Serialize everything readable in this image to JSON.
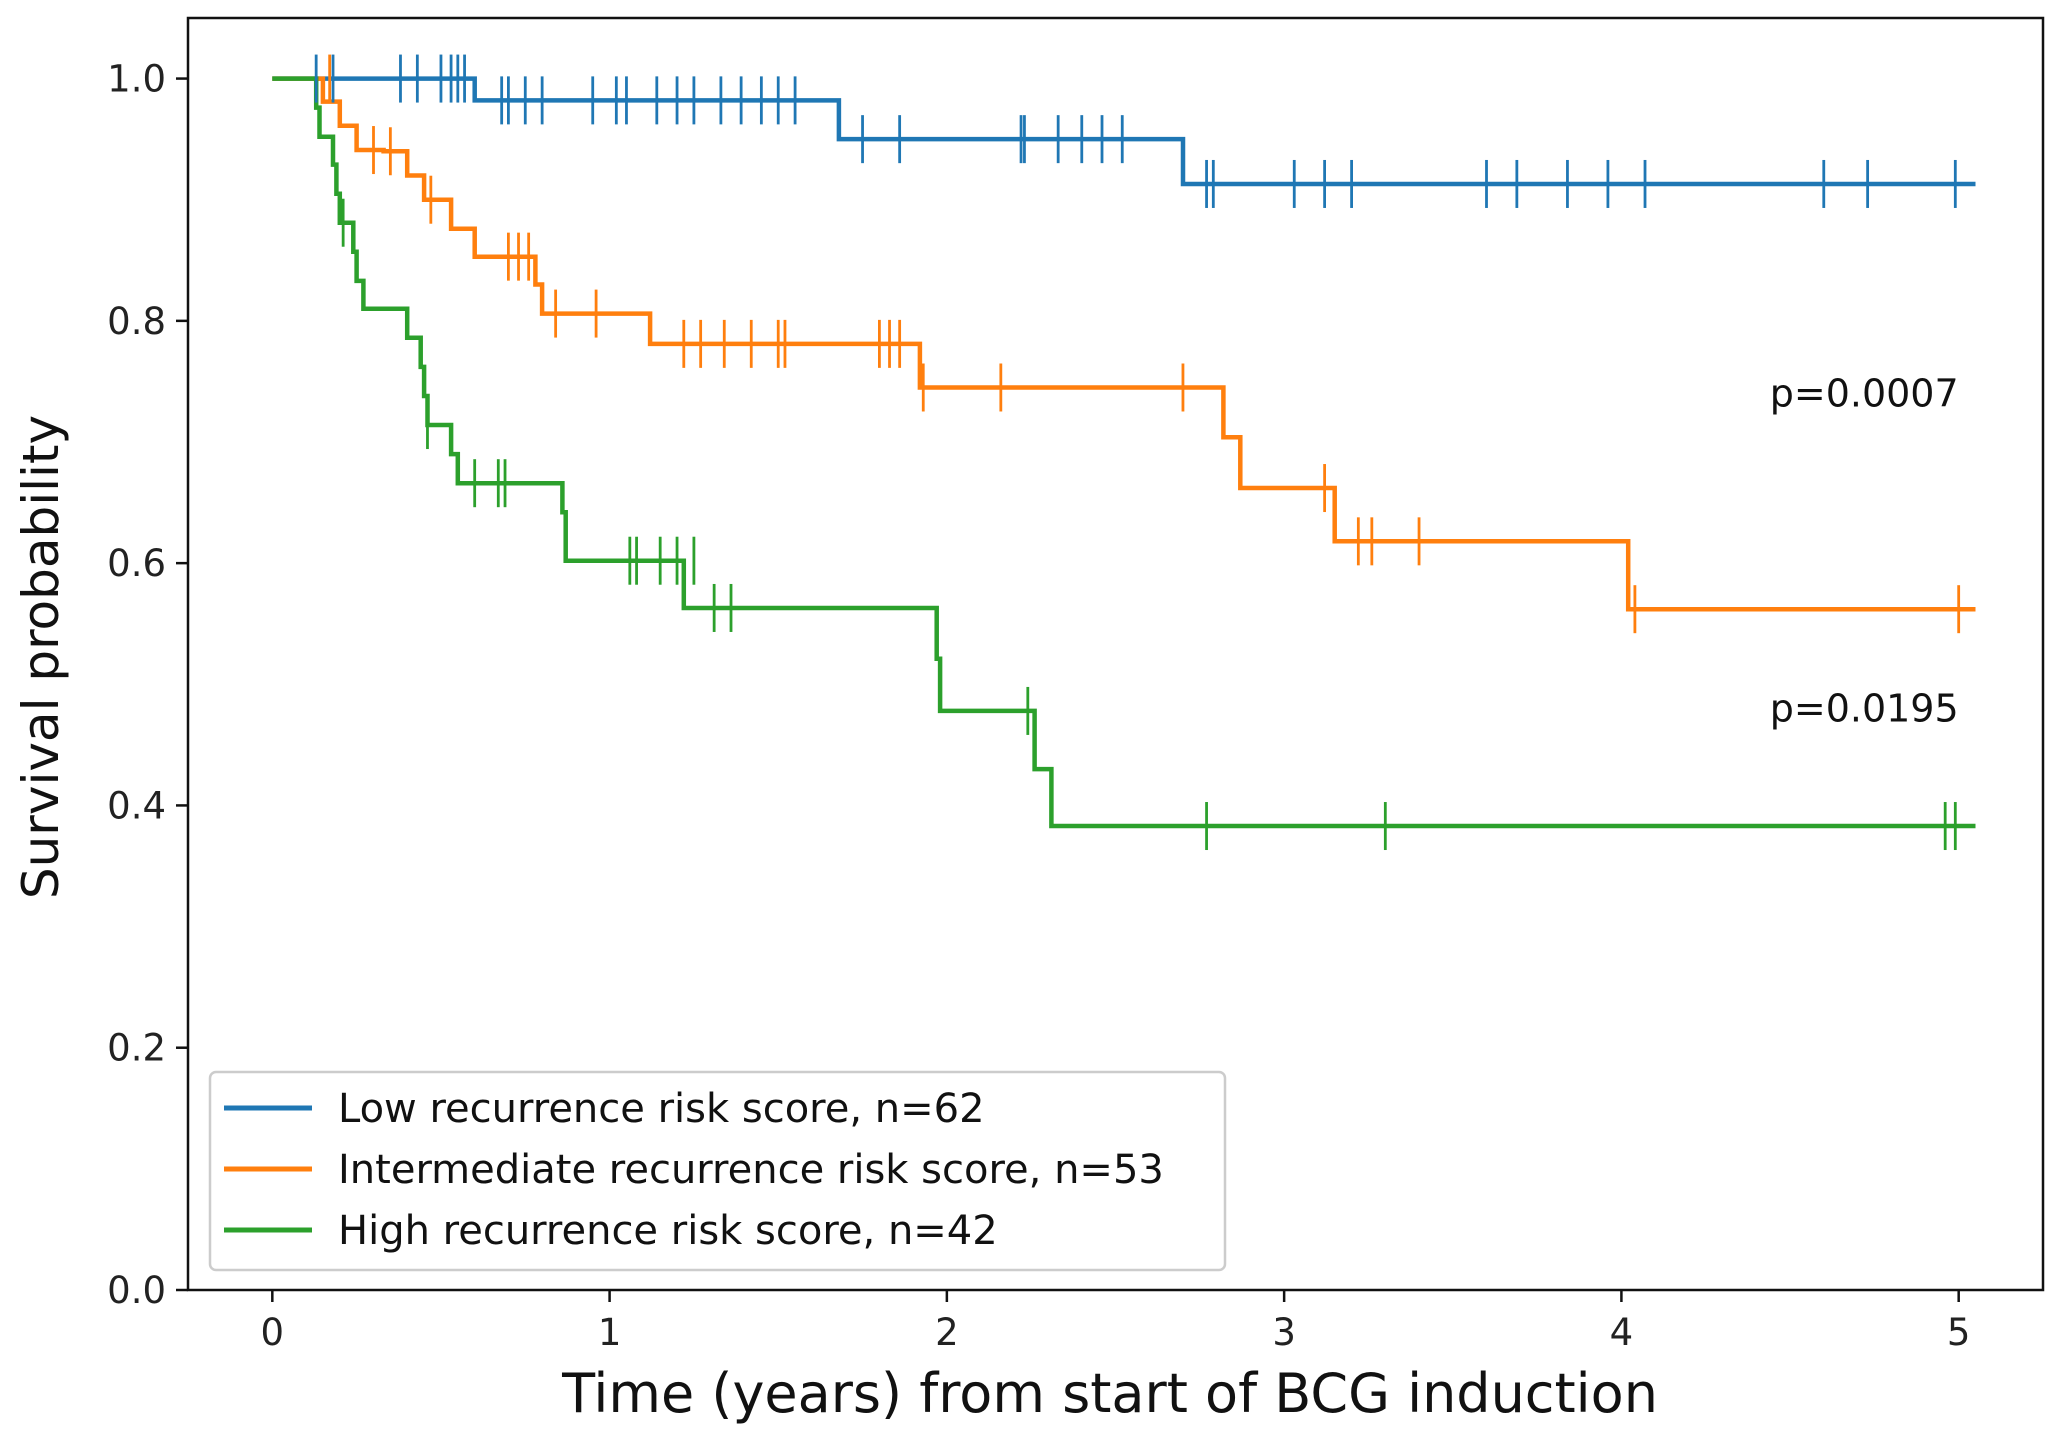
{
  "chart_data": {
    "type": "line",
    "subtype": "kaplan-meier-step",
    "xlabel": "Time (years) from start of BCG induction",
    "ylabel": "Survival probability",
    "xlim": [
      -0.25,
      5.25
    ],
    "ylim": [
      0.0,
      1.05
    ],
    "xticks": [
      0,
      1,
      2,
      3,
      4,
      5
    ],
    "yticks": [
      0.0,
      0.2,
      0.4,
      0.6,
      0.8,
      1.0
    ],
    "xtick_labels": [
      "0",
      "1",
      "2",
      "3",
      "4",
      "5"
    ],
    "ytick_labels": [
      "0.0",
      "0.2",
      "0.4",
      "0.6",
      "0.8",
      "1.0"
    ],
    "grid": false,
    "legend_position": "lower-left",
    "annotations": [
      {
        "text": "p=0.0007",
        "x": 5.0,
        "y": 0.74
      },
      {
        "text": "p=0.0195",
        "x": 5.0,
        "y": 0.48
      }
    ],
    "series": [
      {
        "name": "Low recurrence risk score, n=62",
        "color": "#1f77b4",
        "steps": [
          [
            0,
            1.0
          ],
          [
            0.6,
            0.982
          ],
          [
            1.68,
            0.95
          ],
          [
            2.7,
            0.913
          ],
          [
            5.05,
            0.913
          ]
        ],
        "censors": [
          [
            0.13,
            1.0
          ],
          [
            0.18,
            1.0
          ],
          [
            0.38,
            1.0
          ],
          [
            0.43,
            1.0
          ],
          [
            0.5,
            1.0
          ],
          [
            0.53,
            1.0
          ],
          [
            0.55,
            1.0
          ],
          [
            0.57,
            1.0
          ],
          [
            0.68,
            0.982
          ],
          [
            0.7,
            0.982
          ],
          [
            0.75,
            0.982
          ],
          [
            0.8,
            0.982
          ],
          [
            0.95,
            0.982
          ],
          [
            1.02,
            0.982
          ],
          [
            1.05,
            0.982
          ],
          [
            1.14,
            0.982
          ],
          [
            1.2,
            0.982
          ],
          [
            1.25,
            0.982
          ],
          [
            1.33,
            0.982
          ],
          [
            1.39,
            0.982
          ],
          [
            1.45,
            0.982
          ],
          [
            1.5,
            0.982
          ],
          [
            1.55,
            0.982
          ],
          [
            1.75,
            0.95
          ],
          [
            1.86,
            0.95
          ],
          [
            2.22,
            0.95
          ],
          [
            2.23,
            0.95
          ],
          [
            2.33,
            0.95
          ],
          [
            2.4,
            0.95
          ],
          [
            2.46,
            0.95
          ],
          [
            2.52,
            0.95
          ],
          [
            2.77,
            0.913
          ],
          [
            2.79,
            0.913
          ],
          [
            3.03,
            0.913
          ],
          [
            3.12,
            0.913
          ],
          [
            3.2,
            0.913
          ],
          [
            3.6,
            0.913
          ],
          [
            3.69,
            0.913
          ],
          [
            3.84,
            0.913
          ],
          [
            3.96,
            0.913
          ],
          [
            4.07,
            0.913
          ],
          [
            4.6,
            0.913
          ],
          [
            4.73,
            0.913
          ],
          [
            4.99,
            0.913
          ]
        ]
      },
      {
        "name": "Intermediate recurrence risk score, n=53",
        "color": "#ff7f0e",
        "steps": [
          [
            0,
            1.0
          ],
          [
            0.15,
            0.981
          ],
          [
            0.2,
            0.961
          ],
          [
            0.25,
            0.941
          ],
          [
            0.33,
            0.94
          ],
          [
            0.4,
            0.92
          ],
          [
            0.45,
            0.9
          ],
          [
            0.53,
            0.876
          ],
          [
            0.6,
            0.853
          ],
          [
            0.78,
            0.83
          ],
          [
            0.8,
            0.806
          ],
          [
            1.12,
            0.781
          ],
          [
            1.92,
            0.745
          ],
          [
            2.82,
            0.704
          ],
          [
            2.87,
            0.662
          ],
          [
            3.15,
            0.618
          ],
          [
            4.02,
            0.562
          ],
          [
            5.05,
            0.562
          ]
        ],
        "censors": [
          [
            0.17,
            1.0
          ],
          [
            0.3,
            0.941
          ],
          [
            0.35,
            0.94
          ],
          [
            0.47,
            0.9
          ],
          [
            0.7,
            0.853
          ],
          [
            0.73,
            0.853
          ],
          [
            0.76,
            0.853
          ],
          [
            0.84,
            0.806
          ],
          [
            0.96,
            0.806
          ],
          [
            1.22,
            0.781
          ],
          [
            1.27,
            0.781
          ],
          [
            1.34,
            0.781
          ],
          [
            1.42,
            0.781
          ],
          [
            1.5,
            0.781
          ],
          [
            1.52,
            0.781
          ],
          [
            1.8,
            0.781
          ],
          [
            1.83,
            0.781
          ],
          [
            1.86,
            0.781
          ],
          [
            1.93,
            0.745
          ],
          [
            2.16,
            0.745
          ],
          [
            2.7,
            0.745
          ],
          [
            3.12,
            0.662
          ],
          [
            3.22,
            0.618
          ],
          [
            3.26,
            0.618
          ],
          [
            3.4,
            0.618
          ],
          [
            4.04,
            0.562
          ],
          [
            5.0,
            0.562
          ]
        ]
      },
      {
        "name": "High recurrence risk score, n=42",
        "color": "#2ca02c",
        "steps": [
          [
            0,
            1.0
          ],
          [
            0.13,
            0.976
          ],
          [
            0.14,
            0.952
          ],
          [
            0.18,
            0.929
          ],
          [
            0.19,
            0.905
          ],
          [
            0.2,
            0.881
          ],
          [
            0.24,
            0.857
          ],
          [
            0.25,
            0.833
          ],
          [
            0.27,
            0.81
          ],
          [
            0.4,
            0.786
          ],
          [
            0.44,
            0.762
          ],
          [
            0.45,
            0.738
          ],
          [
            0.46,
            0.714
          ],
          [
            0.53,
            0.69
          ],
          [
            0.55,
            0.666
          ],
          [
            0.86,
            0.642
          ],
          [
            0.87,
            0.602
          ],
          [
            1.22,
            0.563
          ],
          [
            1.97,
            0.521
          ],
          [
            1.98,
            0.478
          ],
          [
            2.26,
            0.43
          ],
          [
            2.31,
            0.383
          ],
          [
            5.05,
            0.383
          ]
        ],
        "censors": [
          [
            0.21,
            0.881
          ],
          [
            0.46,
            0.714
          ],
          [
            0.6,
            0.666
          ],
          [
            0.67,
            0.666
          ],
          [
            0.69,
            0.666
          ],
          [
            1.06,
            0.602
          ],
          [
            1.08,
            0.602
          ],
          [
            1.15,
            0.602
          ],
          [
            1.2,
            0.602
          ],
          [
            1.25,
            0.602
          ],
          [
            1.31,
            0.563
          ],
          [
            1.36,
            0.563
          ],
          [
            2.24,
            0.478
          ],
          [
            2.77,
            0.383
          ],
          [
            3.3,
            0.383
          ],
          [
            4.96,
            0.383
          ],
          [
            4.99,
            0.383
          ]
        ]
      }
    ]
  }
}
